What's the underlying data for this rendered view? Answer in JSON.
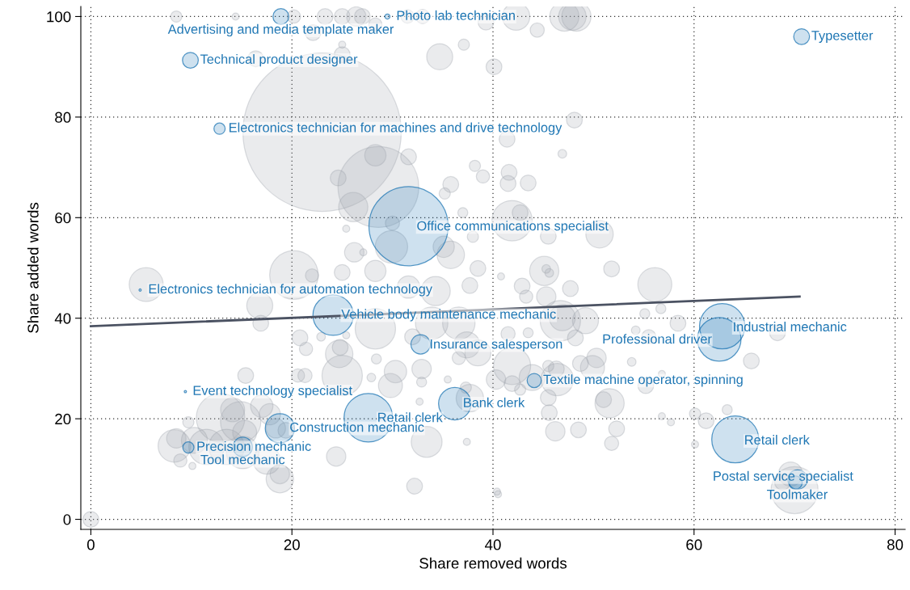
{
  "chart_data": {
    "type": "bubble",
    "xlabel": "Share removed words",
    "ylabel": "Share added words",
    "xlim": [
      -1,
      81
    ],
    "ylim": [
      -2,
      102
    ],
    "xticks": [
      0,
      20,
      40,
      60,
      80
    ],
    "yticks": [
      0,
      20,
      40,
      60,
      80,
      100
    ],
    "grid": true,
    "series": [
      {
        "color": "#9ea3ad",
        "x": [
          8.5,
          14.4,
          20.2,
          23.3,
          25.0,
          26.4,
          27.0,
          28.3,
          31.5,
          33.0,
          39.3,
          42.3,
          44.4,
          47.1,
          47.9,
          48.3,
          22.1,
          25.0,
          25.0,
          16.4,
          34.7,
          37.1,
          40.1,
          23.0,
          28.6,
          28.3,
          31.6,
          24.6,
          26.1,
          30.0,
          29.9,
          35.1,
          35.8,
          41.9,
          42.7,
          45.5,
          50.6,
          45.1,
          41.6,
          41.5,
          43.5,
          48.1,
          41.4,
          46.9,
          35.8,
          35.2,
          38.2,
          39.0,
          37.0,
          38.0,
          26.2,
          27.1,
          25.4,
          20.2,
          22.0,
          5.5,
          16.8,
          16.9,
          28.3,
          25.0,
          31.6,
          34.3,
          37.7,
          38.5,
          28.3,
          32.0,
          33.9,
          36.6,
          37.4,
          38.5,
          36.6,
          30.3,
          32.9,
          29.8,
          27.9,
          28.4,
          25.0,
          24.7,
          24.8,
          20.8,
          21.4,
          22.9,
          25.4,
          21.3,
          15.4,
          32.9,
          35.5,
          32.7,
          37.3,
          37.7,
          40.3,
          33.4,
          37.4,
          24.4,
          32.2,
          40.5,
          0,
          12.9,
          14.9,
          14.1,
          17.0,
          9.7,
          8.5,
          8.3,
          10.3,
          11.5,
          13.5,
          15.1,
          15.3,
          17.5,
          18.8,
          18.8,
          8.9,
          10.1,
          18.4,
          19.4,
          17.8,
          20.6,
          45.3,
          45.6,
          40.8,
          42.9,
          43.3,
          45.3,
          47.7,
          51.8,
          56.1,
          56.7,
          55.1,
          58.4,
          46.7,
          46.9,
          49.2,
          41.5,
          43.5,
          48.2,
          54.2,
          55.5,
          68.3,
          65.7,
          53.8,
          50.3,
          49.9,
          48.7,
          46.3,
          45.5,
          41.9,
          43.9,
          46.4,
          41.9,
          42.7,
          45.5,
          51.0,
          51.6,
          55.2,
          56.8,
          45.6,
          46.2,
          48.5,
          52.3,
          51.8,
          56.8,
          57.7,
          60.1,
          61.2,
          63.3,
          60.1,
          40.4,
          69.6,
          70.0,
          68.8
        ],
        "values": [
          100,
          100,
          100,
          100,
          100,
          100,
          100,
          98.4,
          100,
          100,
          98.9,
          100,
          97.3,
          100,
          100,
          100,
          96.8,
          94.4,
          92.4,
          91.6,
          92.0,
          94.4,
          90.0,
          77.0,
          66.1,
          72.4,
          72.1,
          67.9,
          62.1,
          58.9,
          54.2,
          54.2,
          52.6,
          59.4,
          61.0,
          56.3,
          56.7,
          49.4,
          69.0,
          66.8,
          66.9,
          79.4,
          75.6,
          72.7,
          66.6,
          64.8,
          70.3,
          68.2,
          61.0,
          56.2,
          53.1,
          53.1,
          57.8,
          48.6,
          48.5,
          46.7,
          42.5,
          39.0,
          49.4,
          49.1,
          46.2,
          45.4,
          46.5,
          49.9,
          37.9,
          36.3,
          39.0,
          39.0,
          34.7,
          33.1,
          32.1,
          29.4,
          29.9,
          26.6,
          28.2,
          31.9,
          28.6,
          32.9,
          34.2,
          36.1,
          33.9,
          36.3,
          36.6,
          28.6,
          28.6,
          27.3,
          27.8,
          23.4,
          26.2,
          24.1,
          27.8,
          15.4,
          15.4,
          12.5,
          6.6,
          5.0,
          0,
          20.2,
          19.4,
          21.8,
          22.5,
          19.3,
          16.1,
          14.6,
          15.7,
          14.4,
          14.4,
          13.3,
          17.3,
          11.7,
          8.0,
          9.0,
          11.7,
          10.6,
          18.1,
          17.7,
          20.9,
          28.6,
          49.8,
          49.0,
          48.3,
          46.4,
          44.3,
          44.3,
          45.9,
          49.8,
          46.7,
          41.9,
          40.9,
          39.0,
          39.5,
          40.1,
          39.5,
          36.9,
          37.1,
          36.1,
          37.6,
          36.3,
          37.1,
          31.5,
          31.3,
          32.1,
          30.2,
          31.0,
          29.9,
          30.5,
          30.5,
          28.2,
          27.8,
          27.0,
          25.8,
          24.2,
          23.8,
          23.1,
          26.6,
          28.9,
          21.2,
          17.5,
          17.8,
          18.0,
          15.1,
          20.5,
          19.3,
          21.0,
          19.6,
          21.8,
          14.9,
          5.5,
          9.0,
          5.8,
          7.4
        ],
        "sizes": [
          0.005,
          0.002,
          0.007,
          0.01,
          0.01,
          0.015,
          0.01,
          0.007,
          0.007,
          0.008,
          0.01,
          0.03,
          0.008,
          0.034,
          0.03,
          0.034,
          0.01,
          0.002,
          0.01,
          0.01,
          0.027,
          0.005,
          0.01,
          1,
          0.26,
          0.018,
          0.01,
          0.01,
          0.034,
          0.008,
          0.042,
          0.018,
          0.03,
          0.065,
          0.01,
          0.01,
          0.03,
          0.034,
          0.01,
          0.01,
          0.01,
          0.01,
          0.01,
          0.003,
          0.01,
          0.005,
          0.005,
          0.007,
          0.004,
          0.005,
          0.015,
          0.002,
          0.002,
          0.094,
          0.007,
          0.046,
          0.027,
          0.01,
          0.018,
          0.01,
          0.02,
          0.034,
          0.01,
          0.01,
          0.065,
          0.01,
          0.042,
          0.042,
          0.027,
          0.027,
          0.007,
          0.02,
          0.015,
          0.023,
          0.003,
          0.004,
          0.065,
          0.03,
          0.01,
          0.01,
          0.007,
          0.003,
          0.002,
          0.008,
          0.01,
          0.004,
          0.002,
          0.002,
          0.005,
          0.03,
          0.015,
          0.038,
          0.002,
          0.015,
          0.01,
          0.002,
          0.01,
          0.094,
          0.065,
          0.023,
          0.02,
          0.005,
          0.015,
          0.042,
          0.027,
          0.05,
          0.05,
          0.042,
          0.023,
          0.03,
          0.03,
          0.015,
          0.007,
          0.002,
          0.015,
          0.01,
          0.018,
          0.007,
          0.003,
          0.003,
          0.002,
          0.01,
          0.007,
          0.015,
          0.01,
          0.01,
          0.046,
          0.004,
          0.004,
          0.01,
          0.065,
          0.027,
          0.027,
          0.008,
          0.004,
          0.01,
          0.003,
          0.008,
          0.01,
          0.01,
          0.003,
          0.015,
          0.023,
          0.01,
          0.01,
          0.005,
          0.055,
          0.027,
          0.042,
          0.01,
          0.005,
          0.01,
          0.01,
          0.034,
          0.01,
          0.002,
          0.01,
          0.015,
          0.01,
          0.01,
          0.008,
          0.002,
          0.002,
          0.005,
          0.01,
          0.004,
          0.002,
          0.002,
          0.023,
          0.088,
          0.01
        ]
      },
      {
        "color": "#1f77b4",
        "x": [
          18.9,
          29.5,
          9.9,
          70.7,
          12.8,
          31.6,
          4.9,
          24.1,
          32.8,
          9.4,
          27.6,
          18.8,
          36.2,
          9.7,
          15.1,
          44.1,
          62.8,
          62.5,
          64.1,
          70.3,
          70.1
        ],
        "values": [
          100,
          100,
          91.3,
          96.0,
          77.7,
          58.3,
          45.6,
          40.6,
          34.8,
          25.4,
          20.2,
          18.1,
          23.0,
          14.3,
          14.4,
          27.6,
          38.4,
          35.8,
          15.9,
          7.9,
          7.3
        ],
        "sizes": [
          0.01,
          0.001,
          0.01,
          0.01,
          0.005,
          0.25,
          0.0002,
          0.065,
          0.015,
          0.0002,
          0.094,
          0.034,
          0.042,
          0.005,
          0.015,
          0.008,
          0.082,
          0.076,
          0.088,
          0.015,
          0.007
        ]
      },
      {
        "type": "line",
        "color": "#4b5262",
        "marker": "none",
        "x": [
          0,
          70.5
        ],
        "values": [
          38.4,
          44.3
        ]
      }
    ],
    "annotations": [
      {
        "text": "Advertising and media template maker",
        "x": 18.9,
        "y": 100
      },
      {
        "text": "Photo lab technician",
        "x": 29.5,
        "y": 100
      },
      {
        "text": "Technical product designer",
        "x": 9.9,
        "y": 91.3
      },
      {
        "text": "Typesetter",
        "x": 70.7,
        "y": 96.0
      },
      {
        "text": "Electronics technician for machines and drive technology",
        "x": 12.8,
        "y": 77.7
      },
      {
        "text": "Office communications specialist",
        "x": 31.6,
        "y": 58.3
      },
      {
        "text": "Electronics technician for automation technology",
        "x": 4.9,
        "y": 45.6
      },
      {
        "text": "Vehicle body maintenance mechanic",
        "x": 24.1,
        "y": 40.6
      },
      {
        "text": "Insurance salesperson",
        "x": 32.8,
        "y": 34.8
      },
      {
        "text": "Event technology specialist",
        "x": 9.4,
        "y": 25.4
      },
      {
        "text": "Retail clerk",
        "x": 27.6,
        "y": 20.2
      },
      {
        "text": "Construction mechanic",
        "x": 18.8,
        "y": 18.1
      },
      {
        "text": "Bank clerk",
        "x": 36.2,
        "y": 23.0
      },
      {
        "text": "Precision mechanic",
        "x": 9.7,
        "y": 14.3
      },
      {
        "text": "Tool mechanic",
        "x": 15.1,
        "y": 14.4
      },
      {
        "text": "Textile machine operator, spinning",
        "x": 44.1,
        "y": 27.6
      },
      {
        "text": "Industrial mechanic",
        "x": 62.8,
        "y": 38.4
      },
      {
        "text": "Professional driver",
        "x": 62.5,
        "y": 35.8
      },
      {
        "text": "Retail clerk",
        "x": 64.1,
        "y": 15.9
      },
      {
        "text": "Postal service specialist",
        "x": 70.3,
        "y": 7.9
      },
      {
        "text": "Toolmaker",
        "x": 70.1,
        "y": 7.3
      }
    ]
  }
}
